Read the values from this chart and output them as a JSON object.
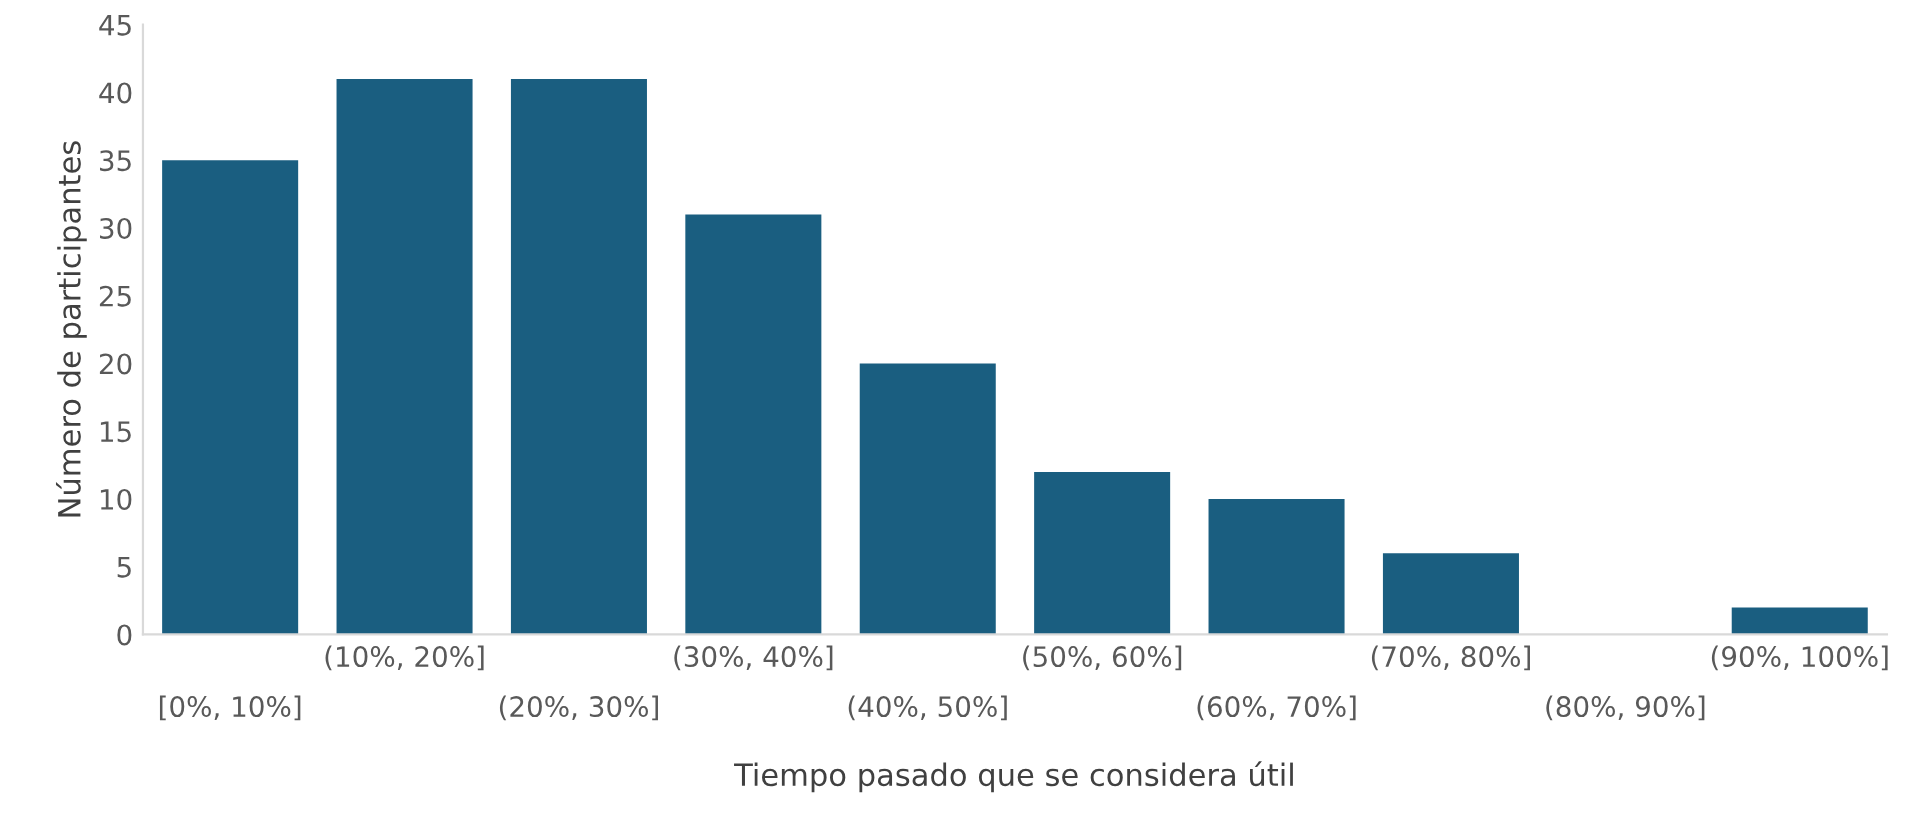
{
  "chart_data": {
    "type": "bar",
    "xlabel": "Tiempo pasado que se considera útil",
    "ylabel": "Número de participantes",
    "categories": [
      "[0%, 10%]",
      "(10%, 20%]",
      "(20%, 30%]",
      "(30%, 40%]",
      "(40%, 50%]",
      "(50%, 60%]",
      "(60%, 70%]",
      "(70%, 80%]",
      "(80%, 90%]",
      "(90%, 100%]"
    ],
    "values": [
      35,
      41,
      41,
      31,
      20,
      12,
      10,
      6,
      0,
      2
    ],
    "color": "#1a5e80",
    "ylim": [
      0,
      45
    ],
    "yticks": [
      0,
      5,
      10,
      15,
      20,
      25,
      30,
      35,
      40,
      45
    ],
    "grid": false,
    "legend": false
  }
}
